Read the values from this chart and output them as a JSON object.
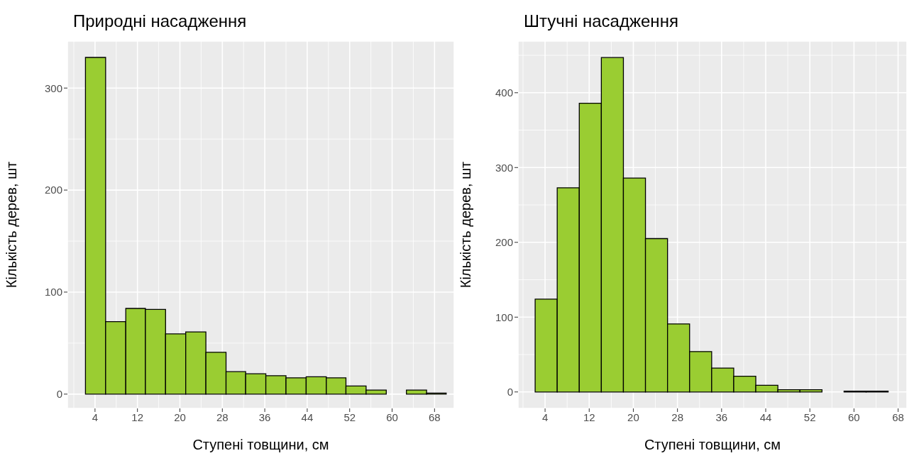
{
  "chart_data": [
    {
      "type": "histogram",
      "title": "Природні насадження",
      "xlabel": "Ступені товщини, см",
      "ylabel": "Кількість дерев, шт",
      "color": "#9acd32",
      "bins": [
        2.2,
        6.0,
        9.8,
        13.5,
        17.3,
        21.1,
        24.9,
        28.7,
        32.4,
        36.2,
        40.0,
        43.8,
        47.6,
        51.3,
        55.1,
        58.9,
        62.7,
        66.5,
        70.2
      ],
      "values": [
        330,
        71,
        84,
        83,
        59,
        61,
        41,
        22,
        20,
        18,
        16,
        17,
        16,
        8,
        4,
        0,
        4,
        1
      ],
      "xlim": [
        -1.2,
        71.7
      ],
      "xticks": [
        4,
        12,
        20,
        28,
        36,
        44,
        52,
        60,
        68
      ],
      "ylim": [
        -14,
        346
      ],
      "yticks": [
        0,
        100,
        200,
        300
      ],
      "grid": true
    },
    {
      "type": "histogram",
      "title": "Штучні насадження",
      "xlabel": "Ступені товщини, см",
      "ylabel": "Кількість дерев, шт",
      "color": "#9acd32",
      "bins": [
        2.2,
        6.2,
        10.2,
        14.2,
        18.2,
        22.2,
        26.2,
        30.2,
        34.2,
        38.2,
        42.2,
        46.2,
        50.2,
        54.2,
        58.2,
        62.2,
        66.2
      ],
      "values": [
        124,
        273,
        386,
        447,
        286,
        205,
        91,
        54,
        32,
        21,
        9,
        3,
        3,
        0,
        1,
        1
      ],
      "xlim": [
        -0.9,
        69.6
      ],
      "xticks": [
        4,
        12,
        20,
        28,
        36,
        44,
        52,
        60,
        68
      ],
      "ylim": [
        -22,
        469
      ],
      "yticks": [
        0,
        100,
        200,
        300,
        400
      ],
      "grid": true
    }
  ]
}
